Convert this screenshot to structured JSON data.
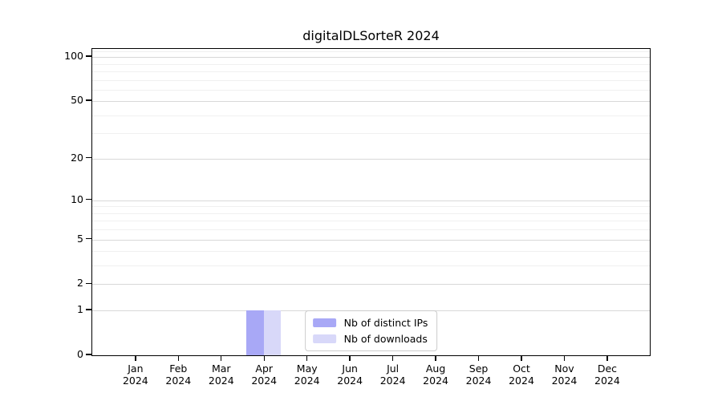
{
  "chart_data": {
    "type": "bar",
    "title": "digitalDLSorteR 2024",
    "categories": [
      "Jan 2024",
      "Feb 2024",
      "Mar 2024",
      "Apr 2024",
      "May 2024",
      "Jun 2024",
      "Jul 2024",
      "Aug 2024",
      "Sep 2024",
      "Oct 2024",
      "Nov 2024",
      "Dec 2024"
    ],
    "series": [
      {
        "name": "Nb of distinct IPs",
        "color": "#a8a8f6",
        "values": [
          0,
          0,
          0,
          1,
          0,
          0,
          0,
          0,
          0,
          0,
          0,
          0
        ]
      },
      {
        "name": "Nb of downloads",
        "color": "#d8d8f9",
        "values": [
          0,
          0,
          0,
          1,
          0,
          0,
          0,
          0,
          0,
          0,
          0,
          0
        ]
      }
    ],
    "xlabel": "",
    "ylabel": "",
    "yscale": "log1p",
    "ylim": [
      0,
      113.5
    ],
    "y_major_ticks": [
      0,
      1,
      2,
      5,
      10,
      20,
      50,
      100
    ],
    "y_minor_ticks": [
      3,
      4,
      6,
      7,
      8,
      9,
      30,
      40,
      60,
      70,
      80,
      90,
      110
    ],
    "grid": true,
    "legend_position": "lower center",
    "colors": {
      "major_grid": "#d8d8d8",
      "minor_grid": "#f0f0f0",
      "spine": "#000000",
      "background": "#ffffff"
    }
  }
}
